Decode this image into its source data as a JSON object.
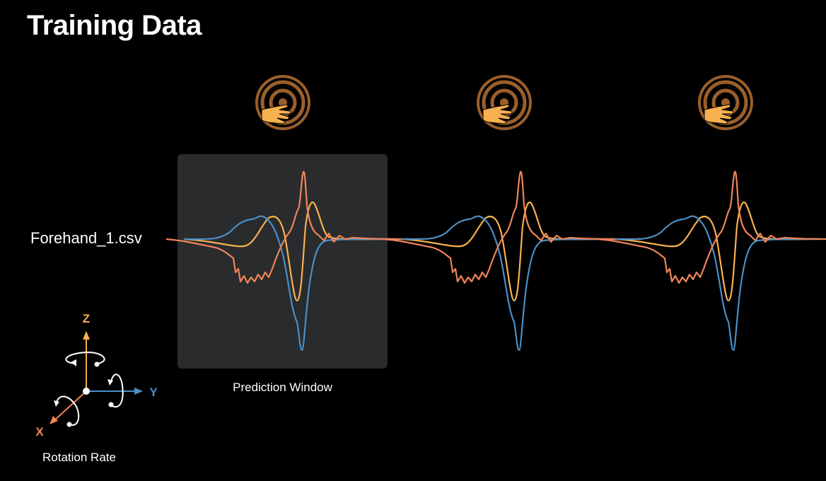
{
  "title": "Training Data",
  "file_label": "Forehand_1.csv",
  "window_label": "Prediction Window",
  "axes_legend": {
    "label": "Rotation Rate",
    "axes": [
      {
        "name": "X",
        "color": "#f0855a"
      },
      {
        "name": "Y",
        "color": "#4a8fc6"
      },
      {
        "name": "Z",
        "color": "#f7b14f"
      }
    ]
  },
  "icons": [
    "hand-on-target-icon",
    "hand-on-target-icon",
    "hand-on-target-icon"
  ],
  "colors": {
    "background": "#000000",
    "window": "#2a2b2d",
    "target": "#9a5f2c",
    "hand": "#f7b14f"
  }
}
